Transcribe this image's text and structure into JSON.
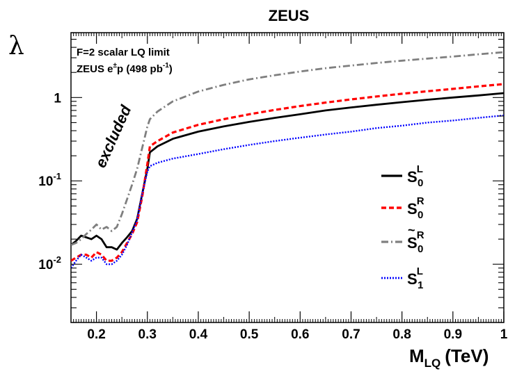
{
  "chart_data": {
    "type": "line",
    "title": "ZEUS",
    "xlabel": {
      "main": "M",
      "sub": "LQ",
      "unit": "(TeV)"
    },
    "ylabel": "λ",
    "xlim": [
      0.15,
      1.0
    ],
    "ylim": [
      0.002,
      6
    ],
    "yscale": "log",
    "grid": false,
    "x_ticks": [
      {
        "value": 0.2,
        "label": "0.2"
      },
      {
        "value": 0.3,
        "label": "0.3"
      },
      {
        "value": 0.4,
        "label": "0.4"
      },
      {
        "value": 0.5,
        "label": "0.5"
      },
      {
        "value": 0.6,
        "label": "0.6"
      },
      {
        "value": 0.7,
        "label": "0.7"
      },
      {
        "value": 0.8,
        "label": "0.8"
      },
      {
        "value": 0.9,
        "label": "0.9"
      },
      {
        "value": 1.0,
        "label": "1"
      }
    ],
    "y_ticks": [
      {
        "value": 0.01,
        "base": "10",
        "exp": "-2"
      },
      {
        "value": 0.1,
        "base": "10",
        "exp": "-1"
      },
      {
        "value": 1,
        "base": "1",
        "exp": ""
      }
    ],
    "annotations": {
      "line1": "F=2 scalar LQ limit",
      "line2_pre": "ZEUS e",
      "line2_sup": "±",
      "line2_mid": "p (498 pb",
      "line2_sup2": "-1",
      "line2_post": ")",
      "excluded": "excluded"
    },
    "legend_placement": "right",
    "series": [
      {
        "name": "S0L",
        "label_main": "S",
        "label_sub": "0",
        "label_sup": "L",
        "tilde": false,
        "color": "#000000",
        "style": "solid",
        "x": [
          0.15,
          0.16,
          0.17,
          0.18,
          0.19,
          0.2,
          0.21,
          0.22,
          0.23,
          0.24,
          0.25,
          0.26,
          0.27,
          0.28,
          0.29,
          0.3,
          0.305,
          0.32,
          0.35,
          0.4,
          0.45,
          0.5,
          0.55,
          0.6,
          0.65,
          0.7,
          0.75,
          0.8,
          0.85,
          0.9,
          0.95,
          1.0
        ],
        "y": [
          0.017,
          0.019,
          0.022,
          0.021,
          0.02,
          0.022,
          0.02,
          0.016,
          0.016,
          0.015,
          0.018,
          0.021,
          0.025,
          0.035,
          0.07,
          0.14,
          0.22,
          0.26,
          0.32,
          0.39,
          0.45,
          0.51,
          0.57,
          0.63,
          0.7,
          0.76,
          0.82,
          0.88,
          0.94,
          1.0,
          1.06,
          1.13
        ]
      },
      {
        "name": "S0R",
        "label_main": "S",
        "label_sub": "0",
        "label_sup": "R",
        "tilde": false,
        "color": "#ff0000",
        "style": "dashed",
        "x": [
          0.15,
          0.16,
          0.17,
          0.18,
          0.19,
          0.2,
          0.21,
          0.22,
          0.23,
          0.24,
          0.25,
          0.26,
          0.27,
          0.28,
          0.29,
          0.3,
          0.305,
          0.32,
          0.35,
          0.4,
          0.45,
          0.5,
          0.55,
          0.6,
          0.65,
          0.7,
          0.75,
          0.8,
          0.85,
          0.9,
          0.95,
          1.0
        ],
        "y": [
          0.011,
          0.012,
          0.013,
          0.013,
          0.012,
          0.014,
          0.013,
          0.011,
          0.011,
          0.012,
          0.014,
          0.018,
          0.023,
          0.032,
          0.065,
          0.16,
          0.26,
          0.3,
          0.38,
          0.47,
          0.55,
          0.63,
          0.71,
          0.79,
          0.87,
          0.95,
          1.03,
          1.11,
          1.19,
          1.27,
          1.36,
          1.45
        ]
      },
      {
        "name": "S̃0R",
        "label_main": "S",
        "label_sub": "0",
        "label_sup": "R",
        "tilde": true,
        "color": "#7f7f7f",
        "style": "dashdot",
        "x": [
          0.15,
          0.16,
          0.17,
          0.18,
          0.19,
          0.2,
          0.21,
          0.22,
          0.23,
          0.24,
          0.25,
          0.26,
          0.27,
          0.28,
          0.29,
          0.3,
          0.305,
          0.32,
          0.35,
          0.4,
          0.45,
          0.5,
          0.55,
          0.6,
          0.65,
          0.7,
          0.75,
          0.8,
          0.85,
          0.9,
          0.95,
          1.0
        ],
        "y": [
          0.017,
          0.018,
          0.02,
          0.023,
          0.026,
          0.03,
          0.026,
          0.028,
          0.025,
          0.028,
          0.04,
          0.06,
          0.09,
          0.14,
          0.25,
          0.45,
          0.55,
          0.68,
          0.9,
          1.18,
          1.42,
          1.65,
          1.85,
          2.05,
          2.25,
          2.42,
          2.6,
          2.77,
          2.93,
          3.1,
          3.3,
          3.5
        ]
      },
      {
        "name": "S1L",
        "label_main": "S",
        "label_sub": "1",
        "label_sup": "L",
        "tilde": false,
        "color": "#0000ff",
        "style": "dotted",
        "x": [
          0.15,
          0.16,
          0.17,
          0.18,
          0.19,
          0.2,
          0.21,
          0.22,
          0.23,
          0.24,
          0.25,
          0.26,
          0.27,
          0.28,
          0.29,
          0.3,
          0.305,
          0.32,
          0.35,
          0.4,
          0.45,
          0.5,
          0.55,
          0.6,
          0.65,
          0.7,
          0.75,
          0.8,
          0.85,
          0.9,
          0.95,
          1.0
        ],
        "y": [
          0.009,
          0.011,
          0.013,
          0.012,
          0.011,
          0.012,
          0.012,
          0.01,
          0.01,
          0.011,
          0.013,
          0.017,
          0.024,
          0.034,
          0.07,
          0.13,
          0.15,
          0.165,
          0.185,
          0.21,
          0.24,
          0.27,
          0.3,
          0.33,
          0.36,
          0.39,
          0.43,
          0.46,
          0.5,
          0.53,
          0.57,
          0.61
        ]
      }
    ]
  }
}
